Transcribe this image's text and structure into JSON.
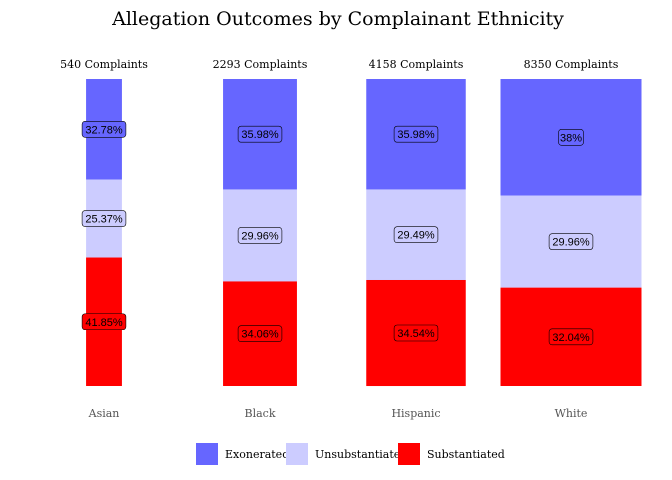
{
  "chart_data": {
    "type": "bar",
    "title": "Allegation Outcomes by Complainant Ethnicity",
    "categories": [
      "Asian",
      "Black",
      "Hispanic",
      "White"
    ],
    "complaint_labels": [
      "540 Complaints",
      "2293 Complaints",
      "4158 Complaints",
      "8350 Complaints"
    ],
    "totals": [
      540,
      2293,
      4158,
      8350
    ],
    "series": [
      {
        "name": "Exonerated",
        "color": "#6666ff",
        "values": [
          32.78,
          35.98,
          35.98,
          38
        ],
        "labels": [
          "32.78%",
          "35.98%",
          "35.98%",
          "38%"
        ]
      },
      {
        "name": "Unsubstantiated",
        "color": "#ccccff",
        "values": [
          25.37,
          29.96,
          29.49,
          29.96
        ],
        "labels": [
          "25.37%",
          "29.96%",
          "29.49%",
          "29.96%"
        ]
      },
      {
        "name": "Substantiated",
        "color": "#ff0000",
        "values": [
          41.85,
          34.06,
          34.54,
          32.04
        ],
        "labels": [
          "41.85%",
          "34.06%",
          "34.54%",
          "32.04%"
        ]
      }
    ],
    "legend_position": "bottom",
    "grid": false
  }
}
